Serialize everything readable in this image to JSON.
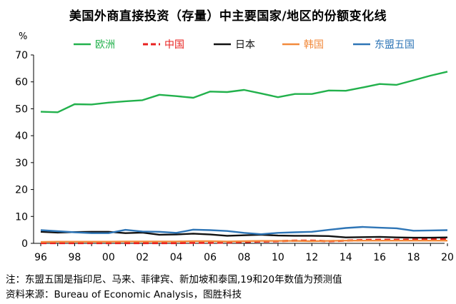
{
  "page": {
    "title": "美国外商直接投资（存量）中主要国家/地区的份额变化线",
    "unit": "%",
    "note_line1": "注：东盟五国是指印尼、马来、菲律宾、新加坡和泰国,19和20年数值为预测值",
    "note_line2": "资料来源：Bureau of Economic Analysis，图胜科技"
  },
  "colors": {
    "europe": "#22b14c",
    "china": "#e8201f",
    "japan": "#111111",
    "korea": "#f28a3c",
    "asean5": "#2e75b6",
    "axis": "#000000"
  },
  "chart_data": {
    "type": "line",
    "title": "美国外商直接投资（存量）中主要国家/地区的份额变化线",
    "ylabel": "%",
    "xlabel": "",
    "ylim": [
      0,
      70
    ],
    "yticks": [
      0,
      10,
      20,
      30,
      40,
      50,
      60,
      70
    ],
    "x": [
      1996,
      1997,
      1998,
      1999,
      2000,
      2001,
      2002,
      2003,
      2004,
      2005,
      2006,
      2007,
      2008,
      2009,
      2010,
      2011,
      2012,
      2013,
      2014,
      2015,
      2016,
      2017,
      2018,
      2019,
      2020
    ],
    "xtick_labels": [
      "96",
      "98",
      "00",
      "02",
      "04",
      "06",
      "08",
      "10",
      "12",
      "14",
      "16",
      "18",
      "20"
    ],
    "xtick_years": [
      1996,
      1998,
      2000,
      2002,
      2004,
      2006,
      2008,
      2010,
      2012,
      2014,
      2016,
      2018,
      2020
    ],
    "legend_position": "top",
    "series": [
      {
        "name": "欧洲",
        "key": "europe",
        "dash": false,
        "values": [
          48.9,
          48.7,
          51.7,
          51.6,
          52.3,
          52.8,
          53.2,
          55.2,
          54.7,
          54.1,
          56.4,
          56.2,
          57.0,
          55.7,
          54.3,
          55.5,
          55.5,
          56.8,
          56.7,
          57.9,
          59.2,
          58.9,
          60.6,
          62.3,
          63.8
        ]
      },
      {
        "name": "中国",
        "key": "china",
        "dash": true,
        "values": [
          0.1,
          0.1,
          0.1,
          0.1,
          0.1,
          0.1,
          0.1,
          0.1,
          0.1,
          0.2,
          0.2,
          0.3,
          0.5,
          0.7,
          0.8,
          1.0,
          1.0,
          0.8,
          1.0,
          1.2,
          1.3,
          1.3,
          1.4,
          1.5,
          1.6
        ]
      },
      {
        "name": "日本",
        "key": "japan",
        "dash": false,
        "values": [
          4.3,
          4.0,
          4.2,
          4.3,
          4.3,
          3.8,
          4.0,
          3.2,
          3.3,
          3.6,
          3.3,
          2.8,
          3.0,
          3.2,
          2.9,
          2.8,
          2.8,
          2.7,
          2.2,
          2.3,
          2.4,
          2.2,
          2.1,
          2.1,
          2.2
        ]
      },
      {
        "name": "韩国",
        "key": "korea",
        "dash": false,
        "values": [
          0.5,
          0.6,
          0.6,
          0.6,
          0.6,
          0.7,
          0.7,
          0.7,
          0.7,
          0.8,
          0.8,
          0.7,
          0.8,
          0.9,
          0.9,
          0.9,
          0.8,
          0.9,
          1.0,
          1.0,
          1.0,
          1.0,
          1.0,
          1.0,
          1.0
        ]
      },
      {
        "name": "东盟五国",
        "key": "asean5",
        "dash": false,
        "values": [
          4.9,
          4.5,
          4.1,
          3.8,
          3.8,
          5.0,
          4.4,
          4.3,
          3.9,
          5.1,
          4.9,
          4.6,
          3.9,
          3.4,
          3.9,
          4.1,
          4.3,
          5.0,
          5.7,
          6.1,
          5.8,
          5.6,
          4.7,
          4.8,
          4.9
        ]
      }
    ]
  }
}
